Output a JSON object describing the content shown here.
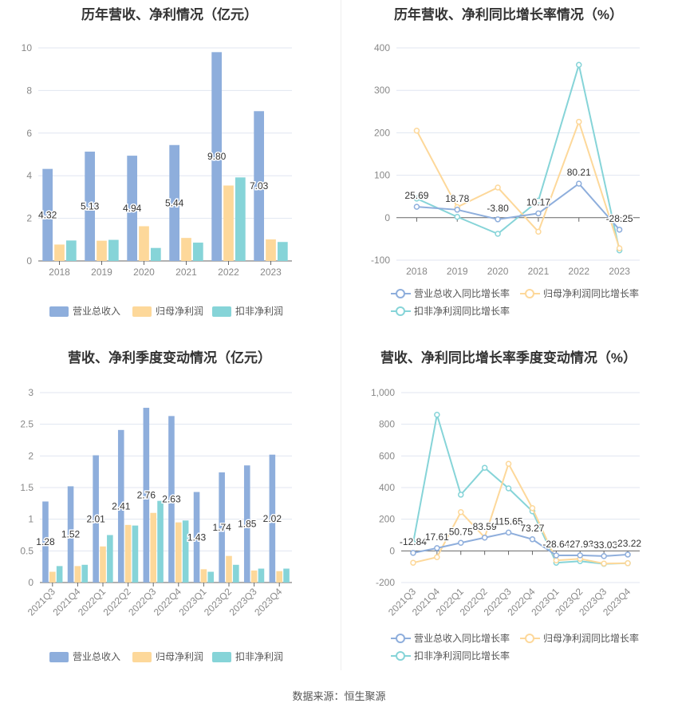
{
  "source": "数据来源：恒生聚源",
  "colors": {
    "revenue": "#8eaedc",
    "net": "#fdd89a",
    "deducted": "#86d4d8"
  },
  "chart_data": [
    {
      "type": "bar",
      "title": "历年营收、净利情况（亿元）",
      "categories": [
        "2018",
        "2019",
        "2020",
        "2021",
        "2022",
        "2023"
      ],
      "ylim": [
        0,
        10
      ],
      "yticks": [
        0,
        2,
        4,
        6,
        8,
        10
      ],
      "grid": true,
      "legend": "bottom",
      "series": [
        {
          "name": "营业总收入",
          "values": [
            4.32,
            5.13,
            4.94,
            5.44,
            9.8,
            7.03
          ],
          "labels": [
            "4.32",
            "5.13",
            "4.94",
            "5.44",
            "9.80",
            "7.03"
          ]
        },
        {
          "name": "归母净利润",
          "values": [
            0.77,
            0.95,
            1.63,
            1.08,
            3.54,
            1.01
          ]
        },
        {
          "name": "扣非净利润",
          "values": [
            0.96,
            0.99,
            0.61,
            0.86,
            3.92,
            0.89
          ]
        }
      ]
    },
    {
      "type": "line",
      "title": "历年营收、净利同比增长率情况（%）",
      "categories": [
        "2018",
        "2019",
        "2020",
        "2021",
        "2022",
        "2023"
      ],
      "ylim": [
        -100,
        400
      ],
      "yticks": [
        -100,
        0,
        100,
        200,
        300,
        400
      ],
      "grid": true,
      "legend": "bottom",
      "series": [
        {
          "name": "营业总收入同比增长率",
          "values": [
            25.69,
            18.78,
            -3.8,
            10.17,
            80.21,
            -28.25
          ],
          "labels": [
            "25.69",
            "18.78",
            "-3.80",
            "10.17",
            "80.21",
            "-28.25"
          ]
        },
        {
          "name": "归母净利润同比增长率",
          "values": [
            205,
            25,
            71,
            -33,
            226,
            -72
          ]
        },
        {
          "name": "扣非净利润同比增长率",
          "values": [
            45,
            2,
            -38,
            40,
            360,
            -77
          ]
        }
      ]
    },
    {
      "type": "bar",
      "title": "营收、净利季度变动情况（亿元）",
      "categories": [
        "2021Q3",
        "2021Q4",
        "2022Q1",
        "2022Q2",
        "2022Q3",
        "2022Q4",
        "2023Q1",
        "2023Q2",
        "2023Q3",
        "2023Q4"
      ],
      "ylim": [
        0,
        3
      ],
      "yticks": [
        0,
        0.5,
        1,
        1.5,
        2,
        2.5,
        3
      ],
      "grid": true,
      "legend": "bottom",
      "series": [
        {
          "name": "营业总收入",
          "values": [
            1.28,
            1.52,
            2.01,
            2.41,
            2.76,
            2.63,
            1.43,
            1.74,
            1.85,
            2.02
          ],
          "labels": [
            "1.28",
            "1.52",
            "2.01",
            "2.41",
            "2.76",
            "2.63",
            "1.43",
            "1.74",
            "1.85",
            "2.02"
          ]
        },
        {
          "name": "归母净利润",
          "values": [
            0.17,
            0.26,
            0.57,
            0.91,
            1.1,
            0.95,
            0.21,
            0.42,
            0.19,
            0.18
          ]
        },
        {
          "name": "扣非净利润",
          "values": [
            0.26,
            0.28,
            0.75,
            0.9,
            1.29,
            0.98,
            0.17,
            0.28,
            0.22,
            0.22
          ]
        }
      ]
    },
    {
      "type": "line",
      "title": "营收、净利同比增长率季度变动情况（%）",
      "categories": [
        "2021Q3",
        "2021Q4",
        "2022Q1",
        "2022Q2",
        "2022Q3",
        "2022Q4",
        "2023Q1",
        "2023Q2",
        "2023Q3",
        "2023Q4"
      ],
      "ylim": [
        -200,
        1000
      ],
      "yticks": [
        -200,
        0,
        200,
        400,
        600,
        800,
        1000
      ],
      "ytick_labels": [
        "-200",
        "0",
        "200",
        "400",
        "600",
        "800",
        "1,000"
      ],
      "grid": true,
      "legend": "bottom",
      "series": [
        {
          "name": "营业总收入同比增长率",
          "values": [
            -12.84,
            17.61,
            50.75,
            83.59,
            115.65,
            73.27,
            -28.64,
            -27.93,
            -33.03,
            -23.22
          ],
          "labels": [
            "-12.84",
            "17.61",
            "50.75",
            "83.59",
            "115.65",
            "73.27",
            "-28.64",
            "-27.93",
            "-33.03",
            "-23.22"
          ]
        },
        {
          "name": "归母净利润同比增长率",
          "values": [
            -75,
            -40,
            245,
            85,
            550,
            270,
            -60,
            -50,
            -80,
            -78
          ]
        },
        {
          "name": "扣非净利润同比增长率",
          "values": [
            50,
            860,
            355,
            525,
            395,
            250,
            -75,
            -65,
            -82,
            -78
          ]
        }
      ]
    }
  ]
}
